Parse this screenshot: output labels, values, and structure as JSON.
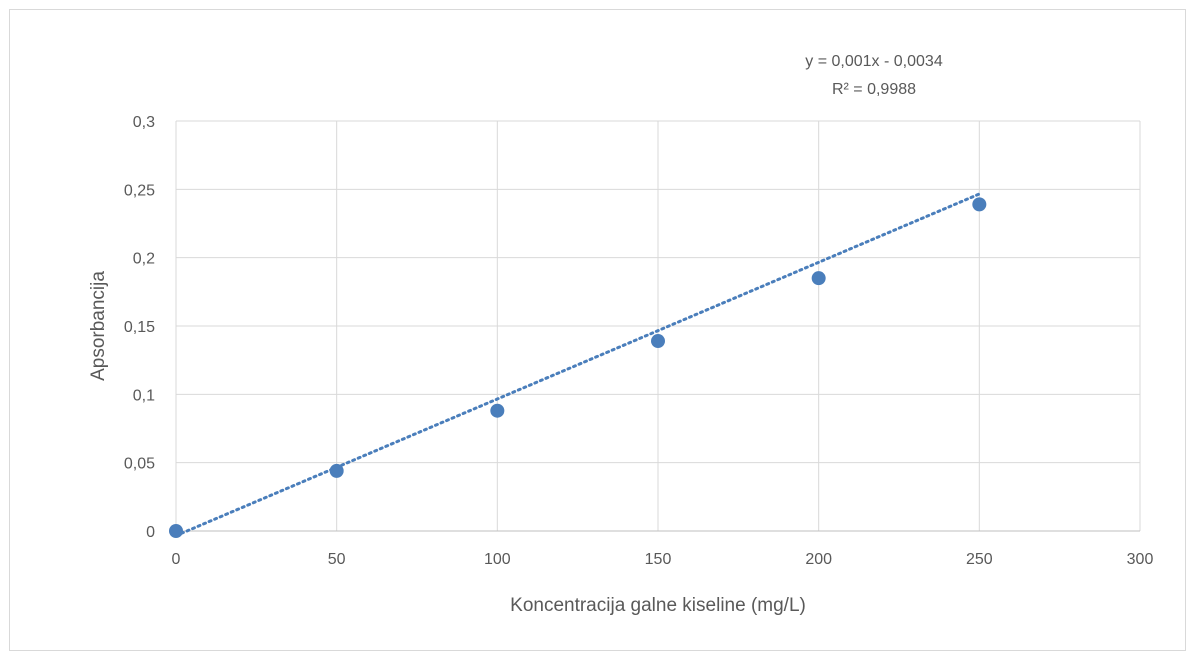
{
  "chart_data": {
    "type": "scatter",
    "title": "",
    "xlabel": "Koncentracija galne kiseline (mg/L)",
    "ylabel": "Apsorbancija",
    "xlim": [
      0,
      300
    ],
    "ylim": [
      0,
      0.3
    ],
    "x_ticks": [
      0,
      50,
      100,
      150,
      200,
      250,
      300
    ],
    "y_ticks": [
      0,
      0.05,
      0.1,
      0.15,
      0.2,
      0.25,
      0.3
    ],
    "x_tick_labels": [
      "0",
      "50",
      "100",
      "150",
      "200",
      "250",
      "300"
    ],
    "y_tick_labels": [
      "0",
      "0,05",
      "0,1",
      "0,15",
      "0,2",
      "0,25",
      "0,3"
    ],
    "grid": true,
    "series": [
      {
        "x": [
          0,
          50,
          100,
          150,
          200,
          250
        ],
        "y": [
          0,
          0.044,
          0.088,
          0.139,
          0.185,
          0.239
        ],
        "color": "#4a7ebb"
      }
    ],
    "trendline": {
      "type": "linear",
      "slope": 0.001,
      "intercept": -0.0034,
      "style": "dotted",
      "color": "#4a7ebb",
      "equation_label": "y = 0,001x - 0,0034",
      "r2_label": "R² = 0,9988"
    }
  }
}
